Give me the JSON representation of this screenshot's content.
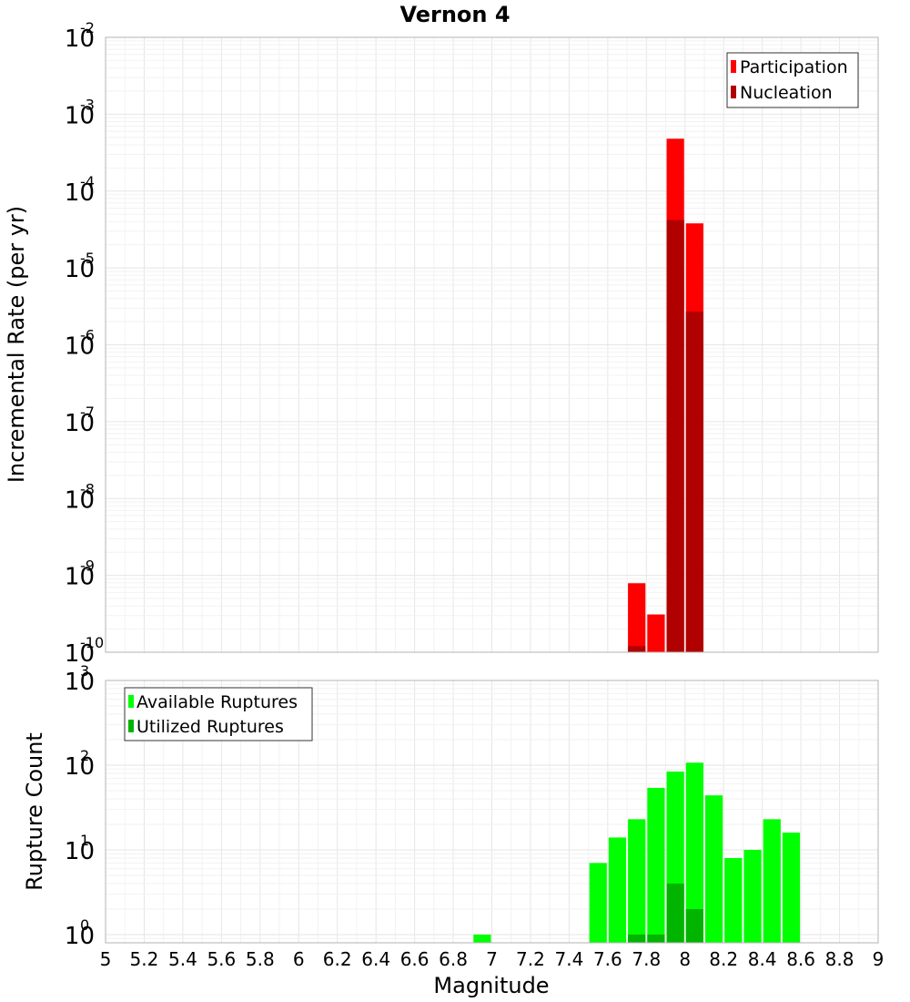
{
  "title": "Vernon 4",
  "colors": {
    "participation": "#ff0000",
    "nucleation": "#b00000",
    "available": "#00ff00",
    "utilized": "#00b400",
    "grid_major": "#e6e6e6",
    "grid_minor": "#f2f2f2",
    "frame": "#b3b3b3"
  },
  "chart_data": [
    {
      "type": "bar",
      "panel": "top",
      "ylabel": "Incremental Rate (per yr)",
      "yscale": "log",
      "ylim": [
        1e-10,
        0.01
      ],
      "xlim": [
        5,
        9
      ],
      "bin_width": 0.1,
      "grid": true,
      "legend_position": "top-right",
      "series": [
        {
          "name": "Participation",
          "color": "#ff0000",
          "points": [
            {
              "x": 7.75,
              "y": 7.9e-10
            },
            {
              "x": 7.85,
              "y": 3.1e-10
            },
            {
              "x": 7.95,
              "y": 0.00048
            },
            {
              "x": 8.05,
              "y": 3.8e-05
            }
          ]
        },
        {
          "name": "Nucleation",
          "color": "#b00000",
          "points": [
            {
              "x": 7.75,
              "y": 1.2e-10
            },
            {
              "x": 7.85,
              "y": 1e-10
            },
            {
              "x": 7.95,
              "y": 4.2e-05
            },
            {
              "x": 8.05,
              "y": 2.7e-06
            }
          ]
        }
      ],
      "yticks": [
        {
          "base": "10",
          "exp": "-2"
        },
        {
          "base": "10",
          "exp": "-3"
        },
        {
          "base": "10",
          "exp": "-4"
        },
        {
          "base": "10",
          "exp": "-5"
        },
        {
          "base": "10",
          "exp": "-6"
        },
        {
          "base": "10",
          "exp": "-7"
        },
        {
          "base": "10",
          "exp": "-8"
        },
        {
          "base": "10",
          "exp": "-9"
        },
        {
          "base": "10",
          "exp": "-10"
        }
      ]
    },
    {
      "type": "bar",
      "panel": "bottom",
      "xlabel": "Magnitude",
      "ylabel": "Rupture Count",
      "yscale": "log",
      "ylim": [
        0.8,
        1000
      ],
      "xlim": [
        5,
        9
      ],
      "bin_width": 0.1,
      "grid": true,
      "legend_position": "top-left",
      "series": [
        {
          "name": "Available Ruptures",
          "color": "#00ff00",
          "points": [
            {
              "x": 6.95,
              "y": 1
            },
            {
              "x": 7.55,
              "y": 7
            },
            {
              "x": 7.65,
              "y": 14
            },
            {
              "x": 7.75,
              "y": 23
            },
            {
              "x": 7.85,
              "y": 54
            },
            {
              "x": 7.95,
              "y": 84
            },
            {
              "x": 8.05,
              "y": 107
            },
            {
              "x": 8.15,
              "y": 44
            },
            {
              "x": 8.25,
              "y": 8
            },
            {
              "x": 8.35,
              "y": 10
            },
            {
              "x": 8.45,
              "y": 23
            },
            {
              "x": 8.55,
              "y": 16
            }
          ]
        },
        {
          "name": "Utilized Ruptures",
          "color": "#00b400",
          "points": [
            {
              "x": 7.75,
              "y": 1
            },
            {
              "x": 7.85,
              "y": 1
            },
            {
              "x": 7.95,
              "y": 4
            },
            {
              "x": 8.05,
              "y": 2
            }
          ]
        }
      ],
      "yticks": [
        {
          "base": "10",
          "exp": "3"
        },
        {
          "base": "10",
          "exp": "2"
        },
        {
          "base": "10",
          "exp": "1"
        },
        {
          "base": "10",
          "exp": "0"
        }
      ],
      "xticks": [
        "5",
        "5.2",
        "5.4",
        "5.6",
        "5.8",
        "6",
        "6.2",
        "6.4",
        "6.6",
        "6.8",
        "7",
        "7.2",
        "7.4",
        "7.6",
        "7.8",
        "8",
        "8.2",
        "8.4",
        "8.6",
        "8.8",
        "9"
      ]
    }
  ]
}
